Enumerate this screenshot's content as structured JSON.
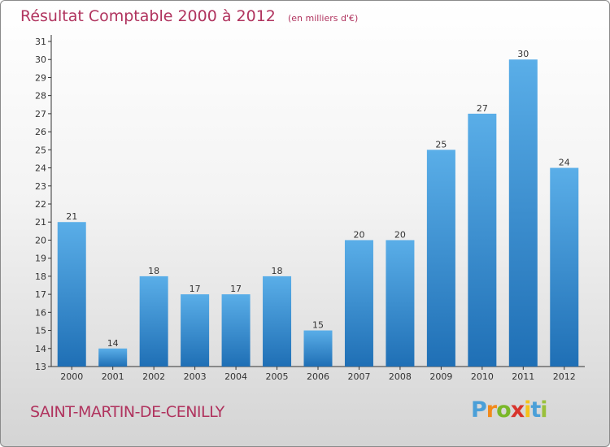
{
  "title": "Résultat Comptable 2000 à 2012",
  "unit": "(en milliers d'€)",
  "commune": "SAINT-MARTIN-DE-CENILLY",
  "logo": {
    "letters": [
      "P",
      "r",
      "o",
      "x",
      "i",
      "t",
      "i"
    ],
    "colors": [
      "#4a9fd8",
      "#f28a1b",
      "#7ab829",
      "#d8342c",
      "#f5c21b",
      "#4a9fd8",
      "#9ac03b"
    ]
  },
  "colors": {
    "bar_top": "#5aaee8",
    "bar_bottom": "#1f6fb5",
    "title": "#b0335e",
    "axis": "#333333"
  },
  "chart_data": {
    "type": "bar",
    "title": "Résultat Comptable 2000 à 2012",
    "xlabel": "",
    "ylabel": "",
    "categories": [
      "2000",
      "2001",
      "2002",
      "2003",
      "2004",
      "2005",
      "2006",
      "2007",
      "2008",
      "2009",
      "2010",
      "2011",
      "2012"
    ],
    "values": [
      21,
      14,
      18,
      17,
      17,
      18,
      15,
      20,
      20,
      25,
      27,
      30,
      24
    ],
    "ylim": [
      13,
      31
    ],
    "yticks": [
      13,
      14,
      15,
      16,
      17,
      18,
      19,
      20,
      21,
      22,
      23,
      24,
      25,
      26,
      27,
      28,
      29,
      30,
      31
    ],
    "grid": false,
    "data_labels": true
  }
}
